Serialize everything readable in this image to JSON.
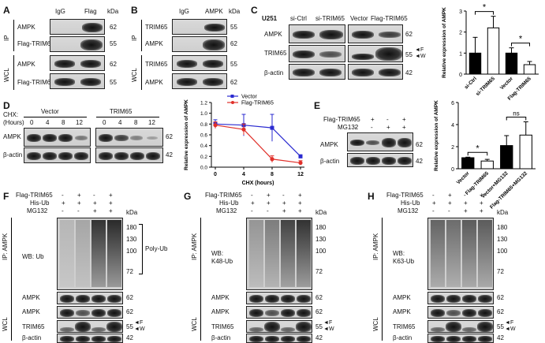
{
  "panels": {
    "A": {
      "letter": "A",
      "lanes": [
        "IgG",
        "Flag"
      ],
      "kda": "kDa",
      "ip": "IP",
      "wcl": "WCL",
      "rows": [
        {
          "label": "AMPK",
          "kda": "62"
        },
        {
          "label": "Flag-TRIM65",
          "kda": "55"
        },
        {
          "label": "AMPK",
          "kda": "62"
        },
        {
          "label": "Flag-TRIM65",
          "kda": "55"
        }
      ]
    },
    "B": {
      "letter": "B",
      "lanes": [
        "IgG",
        "AMPK"
      ],
      "kda": "kDa",
      "ip": "IP",
      "wcl": "WCL",
      "rows": [
        {
          "label": "TRIM65",
          "kda": "55"
        },
        {
          "label": "AMPK",
          "kda": "62"
        },
        {
          "label": "TRIM65",
          "kda": "55"
        },
        {
          "label": "AMPK",
          "kda": "62"
        }
      ]
    },
    "C": {
      "letter": "C",
      "cell": "U251",
      "lanes": [
        "si-Ctrl",
        "si-TRIM65",
        "Vector",
        "Flag-TRIM65"
      ],
      "rows": [
        {
          "label": "AMPK",
          "kda": "62"
        },
        {
          "label": "TRIM65",
          "kda": "55"
        },
        {
          "label": "β-actin",
          "kda": "42"
        }
      ],
      "marker_f": "F",
      "marker_w": "W"
    },
    "D": {
      "letter": "D",
      "chx": "CHX:",
      "hours": "(Hours)",
      "group1": "Vector",
      "group2": "TRIM65",
      "times": [
        "0",
        "4",
        "8",
        "12",
        "0",
        "4",
        "8",
        "12"
      ],
      "rows": [
        {
          "label": "AMPK",
          "kda": "62"
        },
        {
          "label": "β-actin",
          "kda": "42"
        }
      ]
    },
    "E": {
      "letter": "E",
      "treat": [
        {
          "label": "Flag-TRIM65",
          "signs": [
            "-",
            "+",
            "-",
            "+"
          ]
        },
        {
          "label": "MG132",
          "signs": [
            "-",
            "-",
            "+",
            "+"
          ]
        }
      ],
      "rows": [
        {
          "label": "AMPK",
          "kda": "62"
        },
        {
          "label": "β-actin",
          "kda": "42"
        }
      ]
    },
    "F": {
      "letter": "F",
      "treat": [
        {
          "label": "Flag-TRIM65",
          "signs": [
            "-",
            "+",
            "-",
            "+"
          ]
        },
        {
          "label": "His-Ub",
          "signs": [
            "+",
            "+",
            "+",
            "+"
          ]
        },
        {
          "label": "MG132",
          "signs": [
            "-",
            "-",
            "+",
            "+"
          ]
        }
      ],
      "kda": "kDa",
      "ip": "IP: AMPK",
      "wb": "WB: Ub",
      "polyub": "Poly-Ub",
      "ladder": [
        "180",
        "130",
        "100",
        "72"
      ],
      "rows": [
        {
          "label": "AMPK",
          "kda": "62"
        },
        {
          "label": "AMPK",
          "kda": "62"
        },
        {
          "label": "TRIM65",
          "kda": "55"
        },
        {
          "label": "β-actin",
          "kda": "42"
        }
      ],
      "wcl": "WCL",
      "marker_f": "F",
      "marker_w": "W"
    },
    "G": {
      "letter": "G",
      "treat": [
        {
          "label": "Flag-TRIM65",
          "signs": [
            "-",
            "+",
            "-",
            "+"
          ]
        },
        {
          "label": "His-Ub",
          "signs": [
            "+",
            "+",
            "+",
            "+"
          ]
        },
        {
          "label": "MG132",
          "signs": [
            "-",
            "-",
            "+",
            "+"
          ]
        }
      ],
      "kda": "kDa",
      "ip": "IP: AMPK",
      "wb1": "WB:",
      "wb2": "K48-Ub",
      "ladder": [
        "180",
        "130",
        "100",
        "72"
      ],
      "rows": [
        {
          "label": "AMPK",
          "kda": "62"
        },
        {
          "label": "AMPK",
          "kda": "62"
        },
        {
          "label": "TRIM65",
          "kda": "55"
        },
        {
          "label": "β-actin",
          "kda": "42"
        }
      ],
      "wcl": "WCL",
      "marker_f": "F",
      "marker_w": "W"
    },
    "H": {
      "letter": "H",
      "treat": [
        {
          "label": "Flag-TRIM65",
          "signs": [
            "-",
            "+",
            "-",
            "+"
          ]
        },
        {
          "label": "His-Ub",
          "signs": [
            "+",
            "+",
            "+",
            "+"
          ]
        },
        {
          "label": "MG132",
          "signs": [
            "-",
            "-",
            "+",
            "+"
          ]
        }
      ],
      "kda": "kDa",
      "ip": "IP: AMPK",
      "wb1": "WB:",
      "wb2": "K63-Ub",
      "ladder": [
        "180",
        "130",
        "100",
        "72"
      ],
      "rows": [
        {
          "label": "AMPK",
          "kda": "62"
        },
        {
          "label": "AMPK",
          "kda": "62"
        },
        {
          "label": "TRIM65",
          "kda": "55"
        },
        {
          "label": "β-actin",
          "kda": "42"
        }
      ],
      "wcl": "WCL",
      "marker_f": "F",
      "marker_w": "W"
    }
  },
  "chart_data": [
    {
      "type": "bar",
      "panel": "C",
      "categories": [
        "si-Ctrl",
        "si-TRIM65",
        "Vector",
        "Flag-TRIM65"
      ],
      "values": [
        1.0,
        2.2,
        1.0,
        0.45
      ],
      "errors": [
        0.75,
        0.55,
        0.25,
        0.15
      ],
      "fills": [
        "#000000",
        "#ffffff",
        "#000000",
        "#ffffff"
      ],
      "ylabel": "Relative expression of AMPK",
      "ylim": [
        0,
        3
      ],
      "yticks": [
        "0",
        "1",
        "2",
        "3"
      ],
      "sig": [
        {
          "pair": [
            0,
            1
          ],
          "label": "*"
        },
        {
          "pair": [
            2,
            3
          ],
          "label": "*"
        }
      ]
    },
    {
      "type": "line",
      "panel": "D",
      "x": [
        0,
        4,
        8,
        12
      ],
      "xticks": [
        "0",
        "4",
        "8",
        "12"
      ],
      "xlabel": "CHX (hours)",
      "ylabel": "Relative expression of AMPK",
      "ylim": [
        0,
        1.2
      ],
      "yticks": [
        "0.0",
        "0.2",
        "0.4",
        "0.6",
        "0.8",
        "1.0",
        "1.2"
      ],
      "legend": "top-right",
      "series": [
        {
          "name": "Vector",
          "color": "#2a2ad0",
          "values": [
            0.8,
            0.78,
            0.73,
            0.2
          ],
          "errors": [
            0.08,
            0.2,
            0.25,
            0.03
          ]
        },
        {
          "name": "Flag-TRIM65",
          "color": "#e0302a",
          "values": [
            0.78,
            0.7,
            0.15,
            0.08
          ],
          "errors": [
            0.06,
            0.1,
            0.06,
            0.04
          ]
        }
      ]
    },
    {
      "type": "bar",
      "panel": "E",
      "categories": [
        "Vector",
        "Flag-TRIM65",
        "Vector+MG132",
        "Flag-TRIM65+MG132"
      ],
      "values": [
        1.0,
        0.7,
        2.1,
        3.05
      ],
      "errors": [
        0.05,
        0.15,
        0.9,
        1.2
      ],
      "fills": [
        "#000000",
        "#ffffff",
        "#000000",
        "#ffffff"
      ],
      "ylabel": "Relative expression of AMPK",
      "ylim": [
        0,
        6
      ],
      "yticks": [
        "0",
        "2",
        "4",
        "6"
      ],
      "sig": [
        {
          "pair": [
            0,
            1
          ],
          "label": "*"
        },
        {
          "pair": [
            2,
            3
          ],
          "label": "ns"
        }
      ]
    }
  ]
}
